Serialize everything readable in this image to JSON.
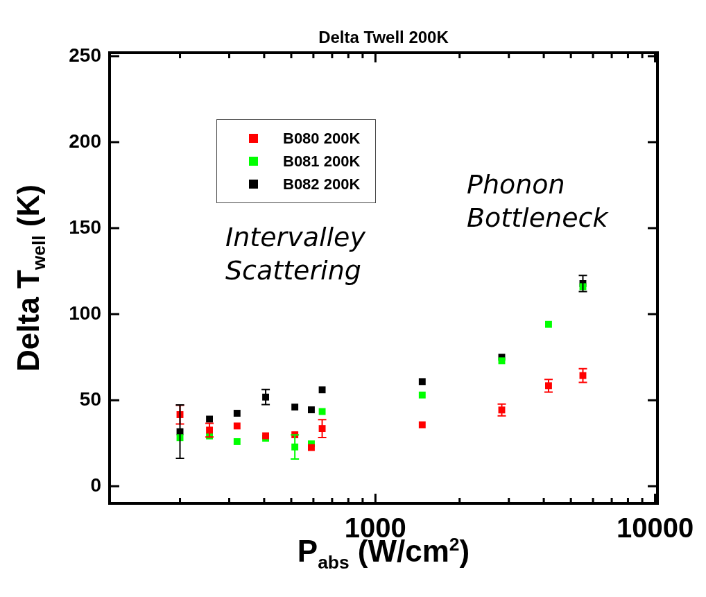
{
  "chart_data": {
    "type": "scatter",
    "title": "Delta Twell 200K",
    "xlabel": "P$_{abs}$ (W/cm$^{2}$)",
    "ylabel": "Delta T$_{well}$ (K)",
    "x": [
      200,
      255,
      320,
      405,
      515,
      590,
      645,
      1470,
      2830,
      4160,
      5520
    ],
    "series": [
      {
        "name": "B080 200K",
        "color": "#ff0000",
        "values": [
          41.6,
          32.6,
          35,
          29.3,
          29.9,
          22.5,
          33.5,
          35.7,
          44.3,
          58.4,
          64.3
        ],
        "errors": [
          5.4,
          4,
          null,
          null,
          null,
          null,
          5.2,
          null,
          3.4,
          3.7,
          4
        ]
      },
      {
        "name": "B081 200K",
        "color": "#00ff00",
        "values": [
          28.2,
          29.2,
          25.9,
          27.9,
          22.8,
          24.6,
          43.4,
          53,
          72.9,
          94.1,
          116
        ],
        "errors": [
          null,
          null,
          null,
          null,
          7,
          null,
          null,
          null,
          null,
          null,
          null
        ]
      },
      {
        "name": "B082 200K",
        "color": "#000000",
        "values": [
          31.7,
          39,
          42.4,
          51.8,
          46,
          44.4,
          56,
          60.8,
          75,
          null,
          117.8
        ],
        "errors": [
          15.5,
          null,
          null,
          4.4,
          null,
          null,
          null,
          null,
          null,
          null,
          4.7
        ]
      }
    ],
    "log": "x",
    "xlim": [
      112,
      10200
    ],
    "ylim": [
      -10,
      252
    ],
    "xticks": [
      {
        "value": 200,
        "label": null
      },
      {
        "value": 300,
        "label": null
      },
      {
        "value": 400,
        "label": null
      },
      {
        "value": 500,
        "label": null
      },
      {
        "value": 600,
        "label": null
      },
      {
        "value": 700,
        "label": null
      },
      {
        "value": 800,
        "label": null
      },
      {
        "value": 900,
        "label": null
      },
      1000,
      {
        "value": 2000,
        "label": null
      },
      {
        "value": 3000,
        "label": null
      },
      {
        "value": 4000,
        "label": null
      },
      {
        "value": 5000,
        "label": null
      },
      {
        "value": 6000,
        "label": null
      },
      {
        "value": 7000,
        "label": null
      },
      {
        "value": 8000,
        "label": null
      },
      {
        "value": 9000,
        "label": null
      },
      10000
    ],
    "yticks": [
      0,
      50,
      100,
      150,
      200,
      250
    ],
    "marker": "square",
    "grid": false,
    "legend": "top left",
    "annotations": [
      "Intervalley Scattering",
      "Phonon Bottleneck"
    ]
  }
}
